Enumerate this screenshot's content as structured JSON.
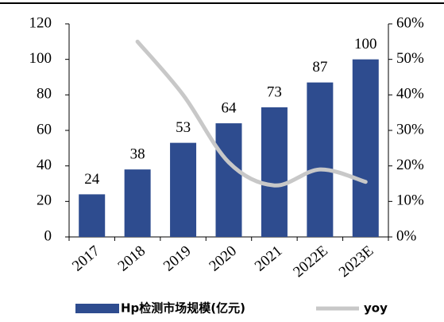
{
  "chart_data": {
    "type": "bar",
    "categories": [
      "2017",
      "2018",
      "2019",
      "2020",
      "2021",
      "2022E",
      "2023E"
    ],
    "series": [
      {
        "name": "Hp检测市场规模(亿元)",
        "type": "bar",
        "color": "#2e4c8f",
        "values": [
          24,
          38,
          53,
          64,
          73,
          87,
          100
        ]
      },
      {
        "name": "yoy",
        "type": "line",
        "axis": "y2",
        "color": "#c8c8c8",
        "values": [
          null,
          55,
          40,
          21,
          14.5,
          19,
          15.5
        ]
      }
    ],
    "ylim": [
      0,
      120
    ],
    "yticks": [
      0,
      20,
      40,
      60,
      80,
      100,
      120
    ],
    "y2lim": [
      0,
      60
    ],
    "y2ticks": [
      {
        "value": 0,
        "label": "0%"
      },
      {
        "value": 10,
        "label": "10%"
      },
      {
        "value": 20,
        "label": "20%"
      },
      {
        "value": 30,
        "label": "30%"
      },
      {
        "value": 40,
        "label": "40%"
      },
      {
        "value": 50,
        "label": "50%"
      },
      {
        "value": 60,
        "label": "60%"
      }
    ],
    "legend": "bottom"
  }
}
